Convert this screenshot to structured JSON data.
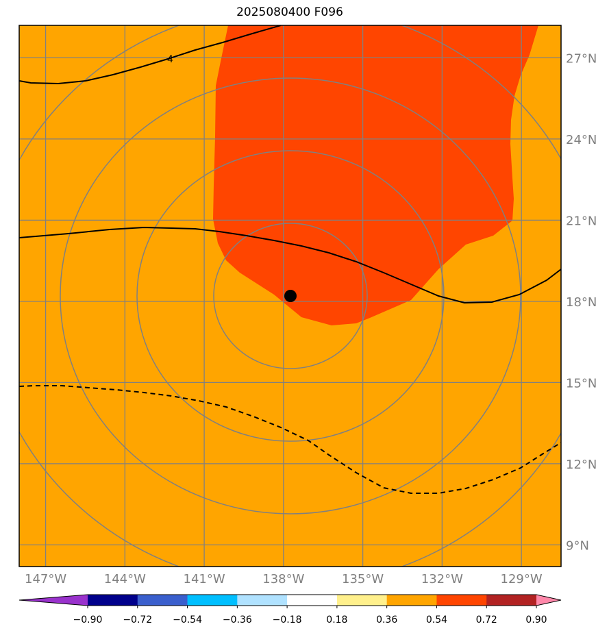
{
  "title": "2025080400 F096",
  "map": {
    "lon_range": [
      -148,
      -127.5
    ],
    "lat_range": [
      8.2,
      28.2
    ],
    "background_color": "#ffa500",
    "high_region_color": "#ff4500",
    "lat_ticks": [
      {
        "value": 27,
        "label": "27°N"
      },
      {
        "value": 24,
        "label": "24°N"
      },
      {
        "value": 21,
        "label": "21°N"
      },
      {
        "value": 18,
        "label": "18°N"
      },
      {
        "value": 15,
        "label": "15°N"
      },
      {
        "value": 12,
        "label": "12°N"
      },
      {
        "value": 9,
        "label": "9°N"
      }
    ],
    "lon_ticks": [
      {
        "value": -147,
        "label": "147°W"
      },
      {
        "value": -144,
        "label": "144°W"
      },
      {
        "value": -141,
        "label": "141°W"
      },
      {
        "value": -138,
        "label": "138°W"
      },
      {
        "value": -135,
        "label": "135°W"
      },
      {
        "value": -132,
        "label": "132°W"
      },
      {
        "value": -129,
        "label": "129°W"
      }
    ],
    "center": {
      "lon": -137.5,
      "lat": 18.2
    },
    "contour_label": "4"
  },
  "colorbar": {
    "colors": [
      "#9932cc",
      "#00008b",
      "#3a5fcd",
      "#00bfff",
      "#b0e2ff",
      "#ffffff",
      "#fff08c",
      "#ffa500",
      "#ff4500",
      "#b22222",
      "#ff88aa"
    ],
    "ticks": [
      "−0.90",
      "−0.72",
      "−0.54",
      "−0.36",
      "−0.18",
      "0.18",
      "0.36",
      "0.54",
      "0.72",
      "0.90"
    ]
  }
}
